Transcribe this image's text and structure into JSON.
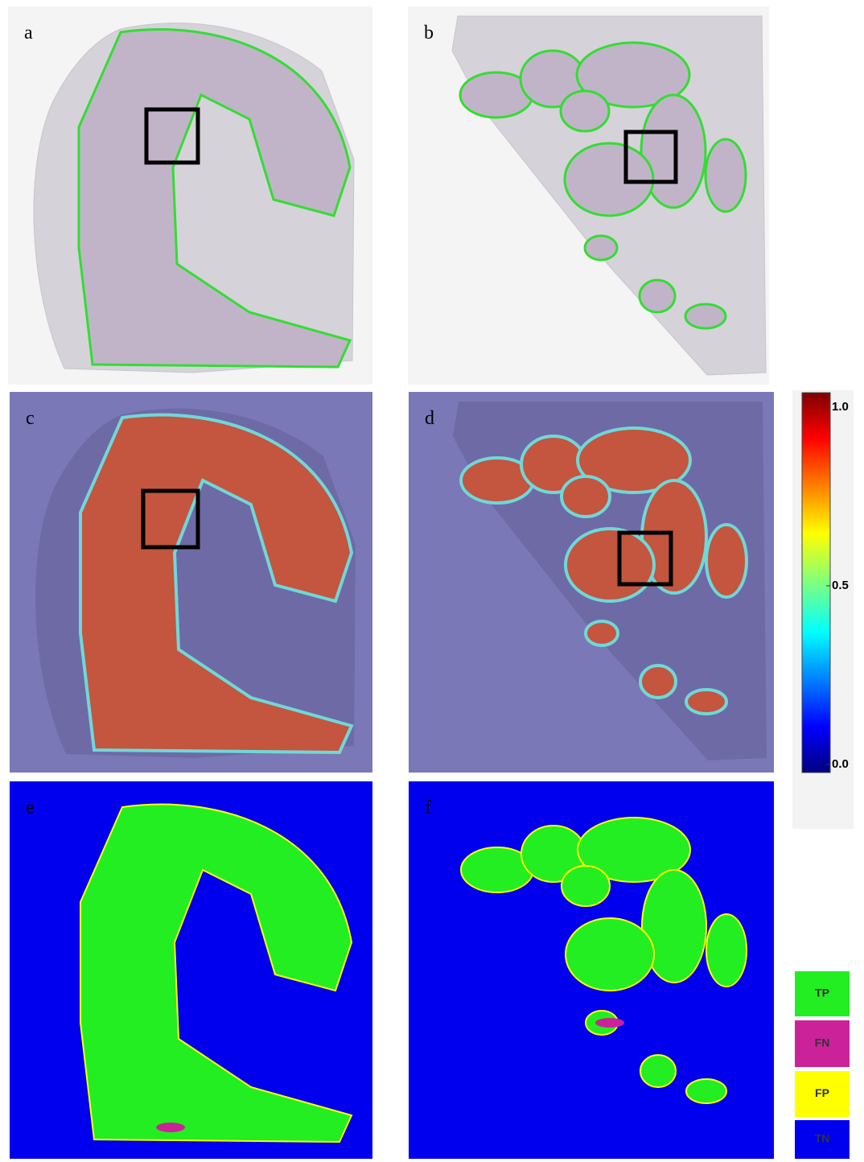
{
  "panels": [
    {
      "label": "a"
    },
    {
      "label": "b"
    },
    {
      "label": "c"
    },
    {
      "label": "d"
    },
    {
      "label": "e"
    },
    {
      "label": "f"
    }
  ],
  "colorbar": {
    "ylim": [
      0,
      1
    ],
    "yticks": [
      {
        "value": 0,
        "label": "0.0"
      },
      0.5,
      {
        "value": 1,
        "label": "1.0"
      }
    ]
  },
  "legend": [
    {
      "name": "TP",
      "color": "#22ee22"
    },
    {
      "name": "FN",
      "color": "#cc2299"
    },
    {
      "name": "FP",
      "color": "#ffff00"
    },
    {
      "name": "TN",
      "color": "#0000ee"
    }
  ]
}
